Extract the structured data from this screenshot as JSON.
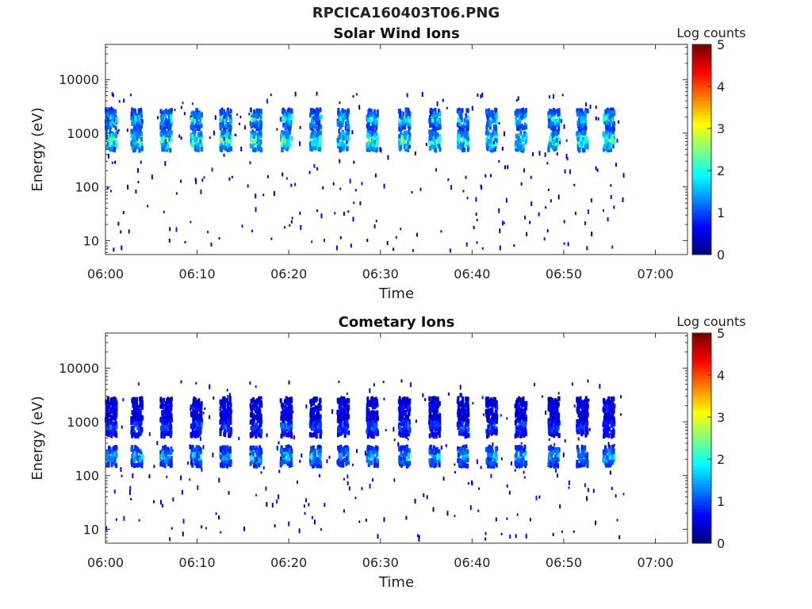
{
  "figure_title": "RPCICA160403T06.PNG",
  "chart_data": [
    {
      "type": "heatmap",
      "title": "Solar Wind Ions",
      "xlabel": "Time",
      "ylabel": "Energy (eV)",
      "x_ticks": [
        "06:00",
        "06:10",
        "06:20",
        "06:30",
        "06:40",
        "06:50",
        "07:00"
      ],
      "x_range_min": [
        0,
        63.5
      ],
      "y_ticks": [
        10,
        100,
        1000,
        10000
      ],
      "y_scale": "log",
      "y_range_eV": [
        5.5,
        45000
      ],
      "colorbar": {
        "label": "Log counts",
        "ticks": [
          0,
          1,
          2,
          3,
          4,
          5
        ],
        "colormap": "jet",
        "range": [
          0,
          5
        ]
      },
      "pulse_times_min": [
        0.5,
        3.3,
        6.5,
        9.8,
        13.0,
        16.3,
        19.6,
        22.8,
        25.8,
        29.0,
        32.5,
        35.8,
        38.9,
        42.0,
        45.2,
        48.8,
        51.9,
        54.8
      ],
      "bands": [
        {
          "center_eV": 800,
          "peak_log_counts": 3.0
        },
        {
          "center_eV": 2000,
          "peak_log_counts": 2.4
        }
      ],
      "data_end_min": 56.5
    },
    {
      "type": "heatmap",
      "title": "Cometary Ions",
      "xlabel": "Time",
      "ylabel": "Energy (eV)",
      "x_ticks": [
        "06:00",
        "06:10",
        "06:20",
        "06:30",
        "06:40",
        "06:50",
        "07:00"
      ],
      "x_range_min": [
        0,
        63.5
      ],
      "y_ticks": [
        10,
        100,
        1000,
        10000
      ],
      "y_scale": "log",
      "y_range_eV": [
        5.5,
        45000
      ],
      "colorbar": {
        "label": "Log counts",
        "ticks": [
          0,
          1,
          2,
          3,
          4,
          5
        ],
        "colormap": "jet",
        "range": [
          0,
          5
        ]
      },
      "pulse_times_min": [
        0.5,
        3.3,
        6.5,
        9.8,
        13.0,
        16.3,
        19.6,
        22.8,
        25.8,
        29.0,
        32.5,
        35.8,
        38.9,
        42.0,
        45.2,
        48.8,
        51.9,
        54.8
      ],
      "bands": [
        {
          "center_eV": 250,
          "peak_log_counts": 2.1
        },
        {
          "center_eV": 900,
          "peak_log_counts": 1.4
        },
        {
          "center_eV": 2000,
          "peak_log_counts": 0.9
        }
      ],
      "data_end_min": 56.5
    }
  ]
}
